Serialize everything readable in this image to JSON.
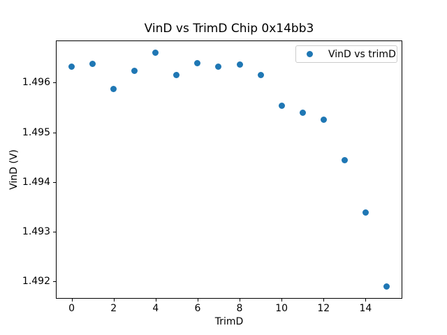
{
  "figure": {
    "background_color": "#ffffff",
    "spine_color": "#000000",
    "legend_border_color": "#cccccc"
  },
  "chart_data": {
    "type": "scatter",
    "title": "VinD vs TrimD Chip 0x14bb3",
    "xlabel": "TrimD",
    "ylabel": "VinD (V)",
    "marker_color": "#1f77b4",
    "grid": false,
    "legend_position": "upper right",
    "xlim": [
      -0.75,
      15.75
    ],
    "ylim": [
      1.49165,
      1.49685
    ],
    "xticks": [
      0,
      2,
      4,
      6,
      8,
      10,
      12,
      14
    ],
    "xtick_labels": [
      "0",
      "2",
      "4",
      "6",
      "8",
      "10",
      "12",
      "14"
    ],
    "yticks": [
      1.492,
      1.493,
      1.494,
      1.495,
      1.496
    ],
    "ytick_labels": [
      "1.492",
      "1.493",
      "1.494",
      "1.495",
      "1.496"
    ],
    "x": [
      0,
      1,
      2,
      3,
      4,
      5,
      6,
      7,
      8,
      9,
      10,
      11,
      12,
      13,
      14,
      15
    ],
    "series": [
      {
        "name": "VinD vs trimD",
        "values": [
          1.49633,
          1.49638,
          1.49588,
          1.49624,
          1.49661,
          1.49616,
          1.4964,
          1.49633,
          1.49636,
          1.49616,
          1.49553,
          1.4954,
          1.49526,
          1.49444,
          1.49339,
          1.49189
        ]
      }
    ]
  }
}
